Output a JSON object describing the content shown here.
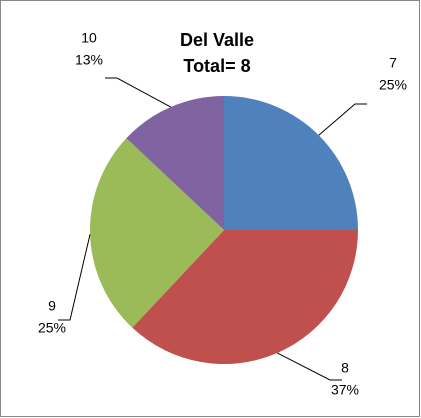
{
  "chart_data": {
    "type": "pie",
    "title": [
      "Del Valle",
      "Total= 8"
    ],
    "categories": [
      "7",
      "8",
      "9",
      "10"
    ],
    "values": [
      25,
      37,
      25,
      13
    ],
    "value_labels": [
      "25%",
      "37%",
      "25%",
      "13%"
    ],
    "colors": [
      "#4f81bd",
      "#c0504d",
      "#9bbb59",
      "#8064a2"
    ]
  }
}
